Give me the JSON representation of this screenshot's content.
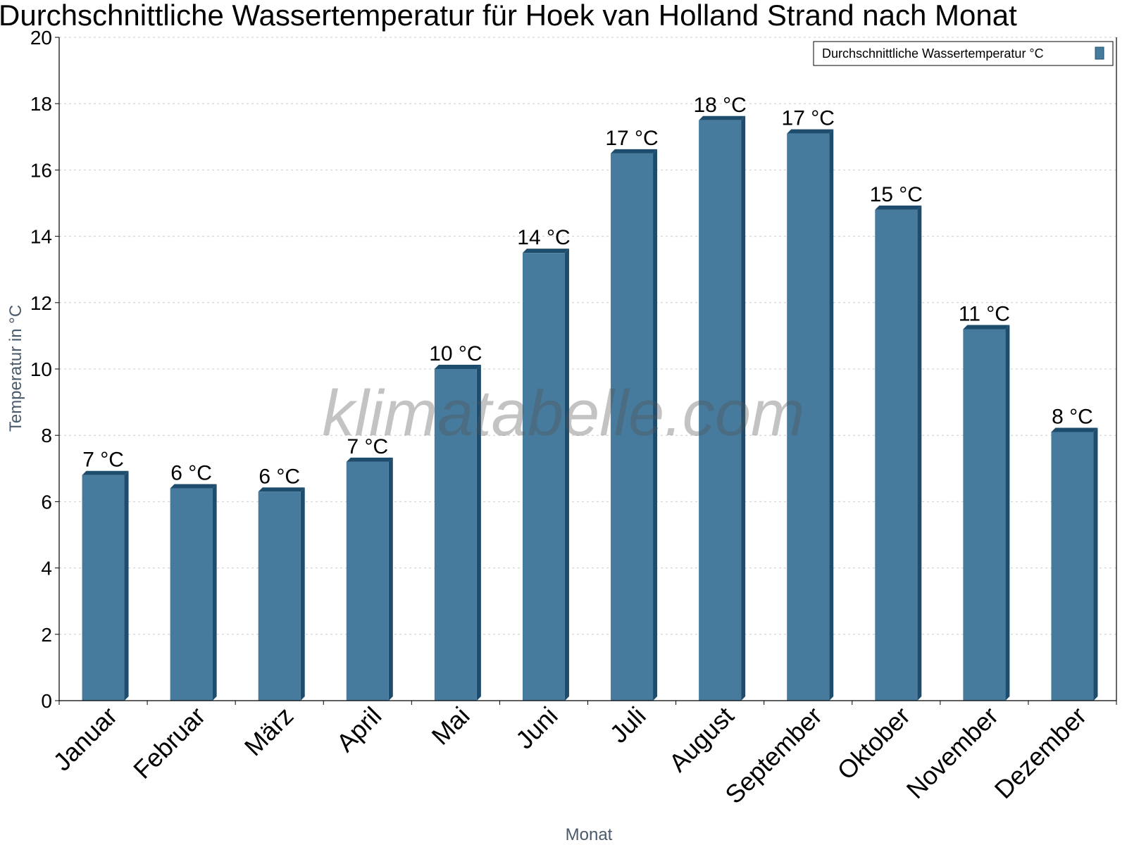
{
  "chart_data": {
    "type": "bar",
    "title": "Durchschnittliche Wassertemperatur für Hoek van Holland Strand nach Monat",
    "xlabel": "Monat",
    "ylabel": "Temperatur in °C",
    "categories": [
      "Januar",
      "Februar",
      "März",
      "April",
      "Mai",
      "Juni",
      "Juli",
      "August",
      "September",
      "Oktober",
      "November",
      "Dezember"
    ],
    "series": [
      {
        "name": "Durchschnittliche Wassertemperatur °C",
        "values": [
          6.8,
          6.4,
          6.3,
          7.2,
          10.0,
          13.5,
          16.5,
          17.5,
          17.1,
          14.8,
          11.2,
          8.1
        ],
        "labels": [
          "7 °C",
          "6 °C",
          "6 °C",
          "7 °C",
          "10 °C",
          "14 °C",
          "17 °C",
          "18 °C",
          "17 °C",
          "15 °C",
          "11 °C",
          "8 °C"
        ]
      }
    ],
    "ylim": [
      0,
      20
    ],
    "yticks": [
      0,
      2,
      4,
      6,
      8,
      10,
      12,
      14,
      16,
      18,
      20
    ],
    "grid": true,
    "legend_position": "top-right",
    "colors": {
      "bar": "#467b9e",
      "bar_dark": "#1d4c6d",
      "grid": "#cccccc"
    }
  },
  "watermark": "klimatabelle.com"
}
